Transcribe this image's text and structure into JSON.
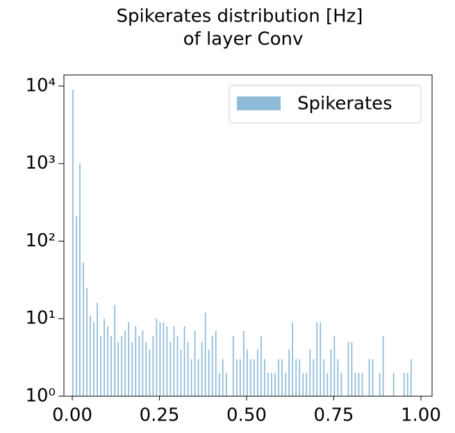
{
  "chart_data": {
    "type": "histogram",
    "title": [
      "Spikerates distribution [Hz]",
      "of layer Conv"
    ],
    "bins": [
      0,
      0.01,
      0.02,
      0.03,
      0.04,
      0.05,
      0.06,
      0.07,
      0.08,
      0.09,
      0.1,
      0.11,
      0.12,
      0.13,
      0.14,
      0.15,
      0.16,
      0.17,
      0.18,
      0.19,
      0.2,
      0.21,
      0.22,
      0.23,
      0.24,
      0.25,
      0.26,
      0.27,
      0.28,
      0.29,
      0.3,
      0.31,
      0.32,
      0.33,
      0.34,
      0.35,
      0.36,
      0.37,
      0.38,
      0.39,
      0.4,
      0.41,
      0.42,
      0.43,
      0.44,
      0.45,
      0.46,
      0.47,
      0.48,
      0.49,
      0.5,
      0.51,
      0.52,
      0.53,
      0.54,
      0.55,
      0.56,
      0.57,
      0.58,
      0.59,
      0.6,
      0.61,
      0.62,
      0.63,
      0.64,
      0.65,
      0.66,
      0.67,
      0.68,
      0.69,
      0.7,
      0.71,
      0.72,
      0.73,
      0.74,
      0.75,
      0.76,
      0.77,
      0.78,
      0.79,
      0.8,
      0.81,
      0.82,
      0.83,
      0.84,
      0.85,
      0.86,
      0.87,
      0.88,
      0.89,
      0.9,
      0.91,
      0.92,
      0.93,
      0.94,
      0.95,
      0.96,
      0.97,
      0.98
    ],
    "series": [
      {
        "name": "Spikerates",
        "color": "#1f77b4",
        "values": [
          9000,
          210,
          1000,
          53,
          25,
          11,
          9,
          16,
          6,
          10,
          8,
          6,
          15,
          5,
          6,
          7,
          9,
          5,
          8,
          6,
          7,
          5,
          4,
          6,
          10,
          9,
          9,
          8,
          5,
          8,
          6,
          4,
          8,
          5,
          3,
          7,
          3,
          5,
          12,
          4,
          6,
          7,
          2,
          3,
          2,
          1,
          6,
          3,
          3,
          7,
          4,
          3,
          3,
          4,
          6,
          3,
          2,
          2,
          2,
          3,
          3,
          2,
          4,
          9,
          3,
          3,
          2,
          2,
          4,
          3,
          9,
          9,
          3,
          2,
          4,
          6,
          3,
          2,
          1,
          5,
          5,
          2,
          2,
          2,
          1,
          3,
          3,
          1,
          2,
          6,
          1,
          1,
          2,
          0,
          1,
          2,
          2,
          3
        ]
      }
    ],
    "xlim": [
      -0.024,
      1.032
    ],
    "xticks": [
      {
        "value": 0,
        "label": "0.00"
      },
      {
        "value": 0.25,
        "label": "0.25"
      },
      {
        "value": 0.5,
        "label": "0.50"
      },
      {
        "value": 0.75,
        "label": "0.75"
      },
      {
        "value": 1,
        "label": "1.00"
      }
    ],
    "ylim": [
      1,
      13900
    ],
    "log_y": true,
    "yticks": [
      {
        "value": 1,
        "label": "10⁰"
      },
      {
        "value": 10,
        "label": "10¹"
      },
      {
        "value": 100,
        "label": "10²"
      },
      {
        "value": 1000,
        "label": "10³"
      },
      {
        "value": 10000,
        "label": "10⁴"
      }
    ],
    "legend": "upper right"
  }
}
